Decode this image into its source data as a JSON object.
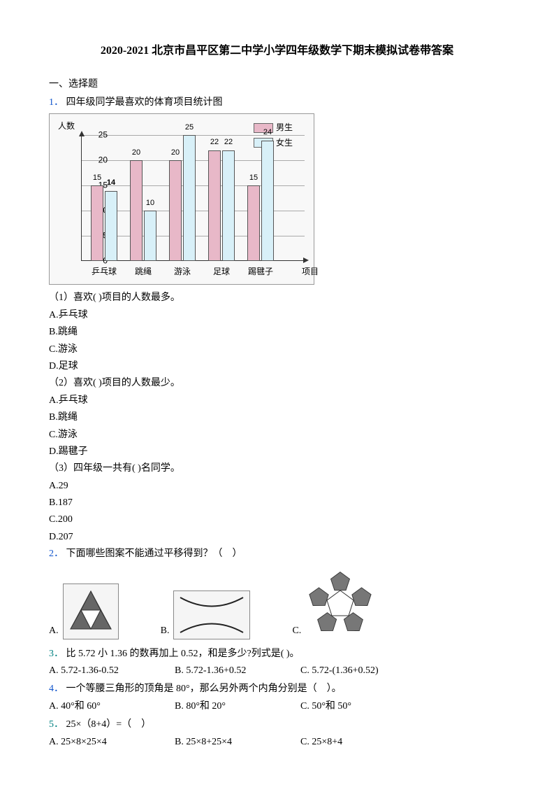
{
  "title": "2020-2021 北京市昌平区第二中学小学四年级数学下期末模拟试卷带答案",
  "section1": "一、选择题",
  "q1": {
    "num": "1．",
    "text": "四年级同学最喜欢的体育项目统计图",
    "chart": {
      "type": "bar",
      "ylabel": "人数",
      "xlabel": "项目",
      "legend": [
        {
          "label": "男生",
          "color": "#e8b8c8"
        },
        {
          "label": "女生",
          "color": "#d8f0f8"
        }
      ],
      "categories": [
        "乒乓球",
        "跳绳",
        "游泳",
        "足球",
        "踢毽子"
      ],
      "series": [
        {
          "name": "男生",
          "color": "#e8b8c8",
          "values": [
            15,
            20,
            20,
            22,
            15
          ]
        },
        {
          "name": "女生",
          "color": "#d8f0f8",
          "values": [
            14,
            10,
            25,
            22,
            24
          ]
        }
      ],
      "ylim": [
        0,
        25
      ],
      "ytick_step": 5,
      "background_color": "#f8f8f8",
      "grid_color": "#aaaaaa",
      "axis_color": "#333333",
      "axis_fontsize": 12,
      "label_fontsize": 11
    },
    "sub1": "（1）喜欢(   )项目的人数最多。",
    "sub1_opts": [
      "A.乒乓球",
      "B.跳绳",
      "C.游泳",
      "D.足球"
    ],
    "sub2": "（2）喜欢(   )项目的人数最少。",
    "sub2_opts": [
      "A.乒乓球",
      "B.跳绳",
      "C.游泳",
      "D.踢毽子"
    ],
    "sub3": "（3）四年级一共有(   )名同学。",
    "sub3_opts": [
      "A.29",
      "B.187",
      "C.200",
      "D.207"
    ]
  },
  "q2": {
    "num": "2．",
    "text": "下面哪些图案不能通过平移得到？（　）",
    "opts": [
      "A.",
      "B.",
      "C."
    ]
  },
  "q3": {
    "num": "3．",
    "text": "比 5.72 小 1.36 的数再加上 0.52，和是多少?列式是(   )。",
    "opts": [
      "A. 5.72-1.36-0.52",
      "B. 5.72-1.36+0.52",
      "C. 5.72-(1.36+0.52)"
    ]
  },
  "q4": {
    "num": "4．",
    "text": "一个等腰三角形的顶角是 80°，那么另外两个内角分别是（　）。",
    "opts": [
      "A. 40°和 60°",
      "B. 80°和 20°",
      "C. 50°和 50°"
    ]
  },
  "q5": {
    "num": "5．",
    "text": "25×（8+4）=（　）",
    "opts": [
      "A. 25×8×25×4",
      "B. 25×8+25×4",
      "C. 25×8+4"
    ]
  }
}
